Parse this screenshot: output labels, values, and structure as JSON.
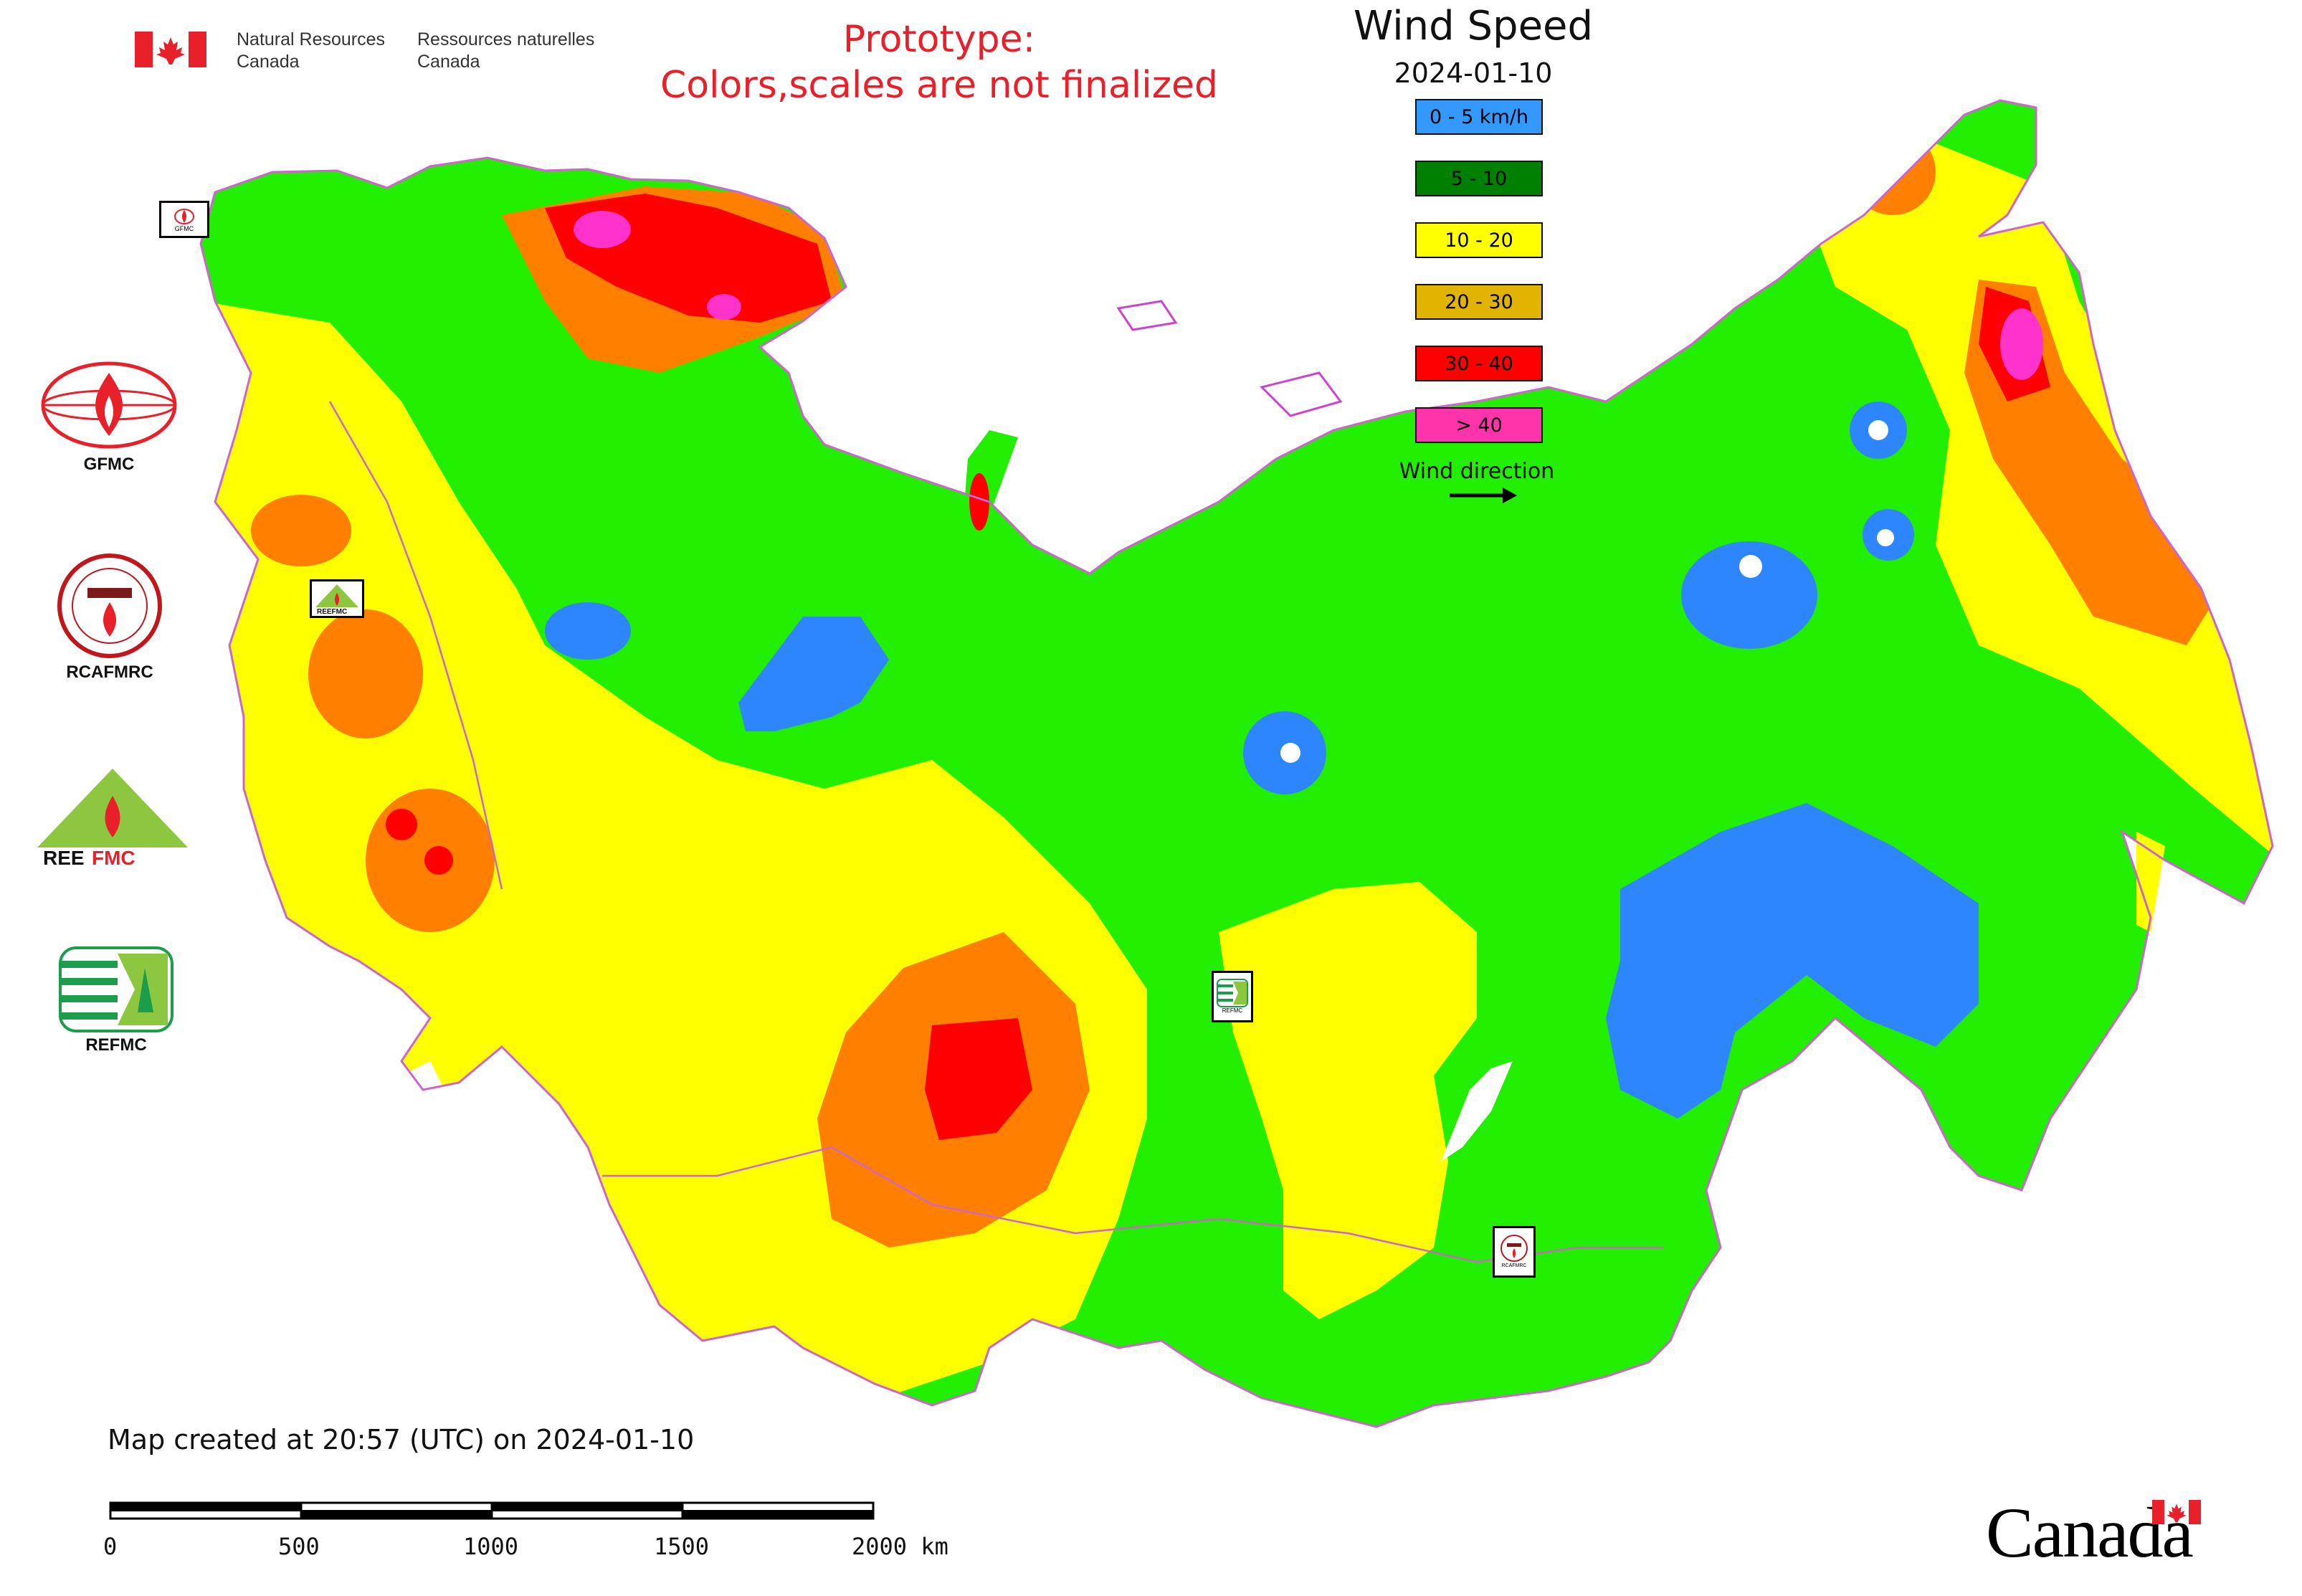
{
  "header": {
    "agency_en_line1": "Natural Resources",
    "agency_en_line2": "Canada",
    "agency_fr_line1": "Ressources naturelles",
    "agency_fr_line2": "Canada",
    "prototype_line1": "Prototype:",
    "prototype_line2": "Colors,scales are not finalized"
  },
  "legend": {
    "title": "Wind Speed",
    "date": "2024-01-10",
    "items": [
      {
        "label": "0 - 5 km/h",
        "color": "#3399ff"
      },
      {
        "label": "5 - 10",
        "color": "#008000"
      },
      {
        "label": "10 - 20",
        "color": "#ffff00"
      },
      {
        "label": "20 - 30",
        "color": "#e0b400"
      },
      {
        "label": "30 - 40",
        "color": "#ff0000"
      },
      {
        "label": "> 40",
        "color": "#ff33aa"
      }
    ],
    "wind_direction_label": "Wind direction"
  },
  "map_colors": {
    "calm": "#2e86ff",
    "light": "#22ee00",
    "moderate": "#ffff00",
    "strong": "#ff8000",
    "very_strong": "#ff0000",
    "extreme": "#ff33cc",
    "boundary": "#cc66cc"
  },
  "logos": [
    {
      "caption": "GFMC"
    },
    {
      "caption": "RCAFMRC"
    },
    {
      "caption": "REEFMC"
    },
    {
      "caption": "REFMC"
    }
  ],
  "map_markers": {
    "gfmc": "GFMC",
    "reefmc": "REEFMC",
    "refmc": "REFMC",
    "rcafmrc": "RCAFMRC"
  },
  "footer": {
    "created_text": "Map created at 20:57 (UTC) on 2024-01-10",
    "scale_labels": [
      "0",
      "500",
      "1000",
      "1500",
      "2000 km"
    ],
    "canada_wordmark": "Canada"
  }
}
